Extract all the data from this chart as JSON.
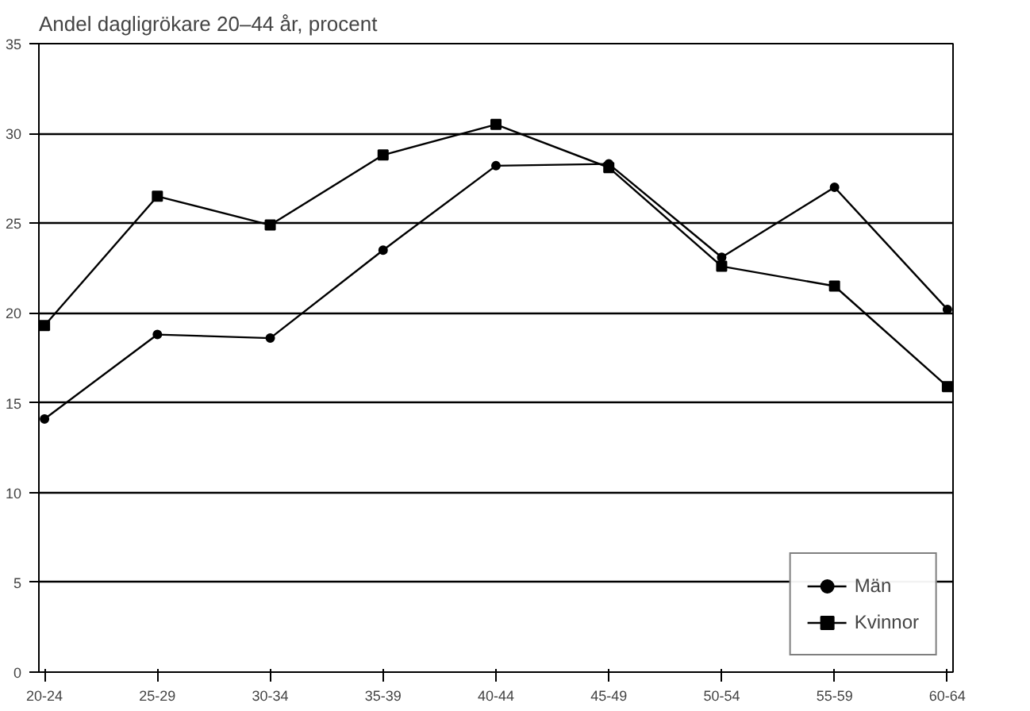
{
  "chart_data": {
    "type": "line",
    "title": "Andel dagligrökare 20–44 år, procent",
    "categories": [
      "20-24",
      "25-29",
      "30-34",
      "35-39",
      "40-44",
      "45-49",
      "50-54",
      "55-59",
      "60-64"
    ],
    "series": [
      {
        "name": "Män",
        "color": "#000000",
        "marker": "circle",
        "values": [
          14.1,
          18.8,
          18.6,
          23.5,
          28.2,
          28.3,
          23.1,
          27.0,
          20.2
        ]
      },
      {
        "name": "Kvinnor",
        "color": "#000000",
        "marker": "square",
        "values": [
          19.3,
          26.5,
          24.9,
          28.8,
          30.5,
          28.1,
          22.6,
          21.5,
          15.9
        ]
      }
    ],
    "ylim": [
      0,
      35
    ],
    "yticks": [
      0,
      5,
      10,
      15,
      20,
      25,
      30,
      35
    ],
    "grid": "y",
    "legend": "bottom right",
    "line_style": "solid"
  }
}
